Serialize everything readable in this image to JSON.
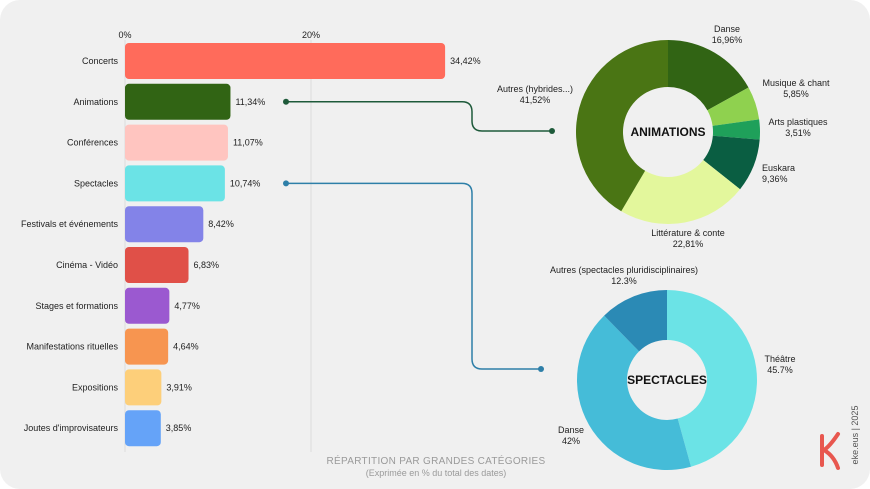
{
  "colors": {
    "background": "#f0f0f0",
    "brand_accent": "#e8574f",
    "animations_connector": "#1e5a3a",
    "spectacles_connector": "#2e7fa8"
  },
  "chart_data": [
    {
      "type": "bar",
      "orientation": "horizontal",
      "title": "RÉPARTITION PAR GRANDES CATÉGORIES",
      "subtitle": "(Exprimée en % du total des dates)",
      "xlim": [
        0,
        100
      ],
      "ticks": [
        {
          "value": 0,
          "label": "0%"
        },
        {
          "value": 20,
          "label": "20%"
        }
      ],
      "categories": [
        {
          "name": "Concerts",
          "value": 34.42,
          "label": "34,42%",
          "color": "#ff6b5b"
        },
        {
          "name": "Animations",
          "value": 11.34,
          "label": "11,34%",
          "color": "#316414"
        },
        {
          "name": "Conférences",
          "value": 11.07,
          "label": "11,07%",
          "color": "#ffc5c0"
        },
        {
          "name": "Spectacles",
          "value": 10.74,
          "label": "10,74%",
          "color": "#6be3e6"
        },
        {
          "name": "Festivals et événements",
          "value": 8.42,
          "label": "8,42%",
          "color": "#8383e8"
        },
        {
          "name": "Cinéma - Vidéo",
          "value": 6.83,
          "label": "6,83%",
          "color": "#e05048"
        },
        {
          "name": "Stages et formations",
          "value": 4.77,
          "label": "4,77%",
          "color": "#9b59d0"
        },
        {
          "name": "Manifestations rituelles",
          "value": 4.64,
          "label": "4,64%",
          "color": "#f79550"
        },
        {
          "name": "Expositions",
          "value": 3.91,
          "label": "3,91%",
          "color": "#fdcf7a"
        },
        {
          "name": "Joutes d'improvisateurs",
          "value": 3.85,
          "label": "3,85%",
          "color": "#65a3f8"
        }
      ]
    },
    {
      "type": "pie",
      "style": "donut",
      "title": "ANIMATIONS",
      "slices": [
        {
          "name": "Danse",
          "value": 16.96,
          "label": "16,96%",
          "color": "#316414"
        },
        {
          "name": "Musique & chant",
          "value": 5.85,
          "label": "5,85%",
          "color": "#8fd14f"
        },
        {
          "name": "Arts plastiques",
          "value": 3.51,
          "label": "3,51%",
          "color": "#1fa05a"
        },
        {
          "name": "Euskara",
          "value": 9.36,
          "label": "9,36%",
          "color": "#0a5e42"
        },
        {
          "name": "Littérature & conte",
          "value": 22.81,
          "label": "22,81%",
          "color": "#e3f79c"
        },
        {
          "name": "Autres (hybrides...)",
          "value": 41.52,
          "label": "41,52%",
          "color": "#4a7514"
        }
      ]
    },
    {
      "type": "pie",
      "style": "donut",
      "title": "SPECTACLES",
      "slices": [
        {
          "name": "Théâtre",
          "value": 45.7,
          "label": "45.7%",
          "color": "#6be3e6"
        },
        {
          "name": "Danse",
          "value": 42,
          "label": "42%",
          "color": "#45bcd8"
        },
        {
          "name": "Autres (spectacles pluridisciplinaires)",
          "value": 12.3,
          "label": "12.3%",
          "color": "#2b8ab5"
        }
      ]
    }
  ],
  "brand": {
    "text": "eke.eus | 2025",
    "logo_letter": "K"
  }
}
